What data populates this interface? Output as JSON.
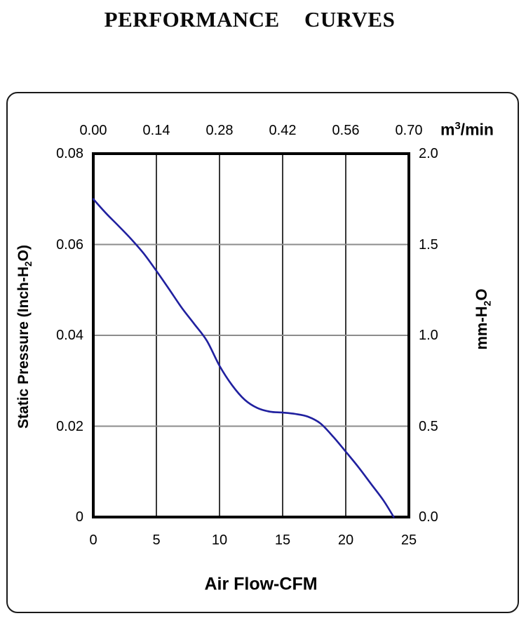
{
  "title": "PERFORMANCE CURVES",
  "labels": {
    "top_unit": {
      "base": "m",
      "sup": "3",
      "rest": "/min"
    },
    "left_axis": {
      "pre": "Static Pressure (Inch-H",
      "sub": "2",
      "post": "O)"
    },
    "right_axis": {
      "pre": "mm-H",
      "sub": "2",
      "post": "O"
    },
    "bottom_axis": "Air Flow-CFM"
  },
  "colors": {
    "curve": "#20209f",
    "grid_vertical": "#383838",
    "grid_horizontal": "#8c8c8c",
    "plot_border": "#000000",
    "frame_border": "#1a1a1a",
    "text": "#000000"
  },
  "chart_data": {
    "type": "line",
    "title": "PERFORMANCE CURVES",
    "grid": true,
    "x_bottom": {
      "label": "Air Flow-CFM",
      "ticks": [
        "0",
        "5",
        "10",
        "15",
        "20",
        "25"
      ],
      "range": [
        0,
        25
      ]
    },
    "x_top": {
      "label": "m3/min",
      "ticks": [
        "0.00",
        "0.14",
        "0.28",
        "0.42",
        "0.56",
        "0.70"
      ],
      "range": [
        0,
        0.7
      ]
    },
    "y_left": {
      "label": "Static Pressure (Inch-H2O)",
      "ticks": [
        "0.08",
        "0.06",
        "0.04",
        "0.02",
        "0"
      ],
      "range": [
        0,
        0.08
      ]
    },
    "y_right": {
      "label": "mm-H2O",
      "ticks": [
        "2.0",
        "1.5",
        "1.0",
        "0.5",
        "0.0"
      ],
      "range": [
        0,
        2.0
      ]
    },
    "series": [
      {
        "name": "static-pressure-vs-airflow",
        "color": "#20209f",
        "points_cfm_inh2o": [
          [
            0,
            0.07
          ],
          [
            1,
            0.0669
          ],
          [
            2,
            0.0641
          ],
          [
            3,
            0.0612
          ],
          [
            4,
            0.058
          ],
          [
            5,
            0.0542
          ],
          [
            6,
            0.0502
          ],
          [
            7,
            0.0461
          ],
          [
            8,
            0.0425
          ],
          [
            9,
            0.0388
          ],
          [
            10,
            0.0333
          ],
          [
            11,
            0.029
          ],
          [
            12,
            0.0258
          ],
          [
            13,
            0.024
          ],
          [
            14,
            0.0232
          ],
          [
            15,
            0.023
          ],
          [
            16,
            0.0227
          ],
          [
            17,
            0.0221
          ],
          [
            18,
            0.0206
          ],
          [
            19,
            0.0177
          ],
          [
            20,
            0.0144
          ],
          [
            21,
            0.011
          ],
          [
            22,
            0.0073
          ],
          [
            23,
            0.0036
          ],
          [
            23.8,
            0.0
          ]
        ]
      }
    ]
  }
}
